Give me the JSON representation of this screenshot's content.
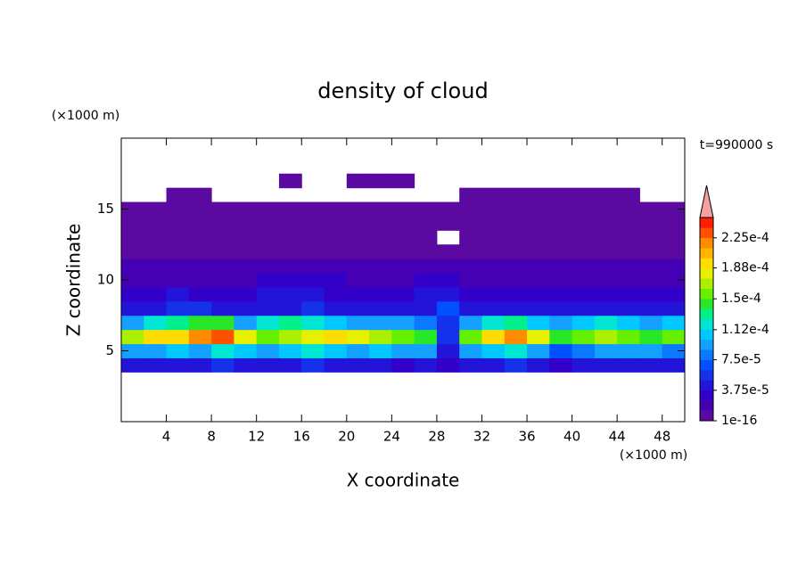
{
  "chart_data": {
    "type": "contour",
    "title": "density of cloud",
    "xlabel": "X coordinate",
    "ylabel": "Z coordinate",
    "xunit": "(×1000 m)",
    "yunit": "(×1000 m)",
    "annotation": "t=990000 s",
    "xlim": [
      0,
      50
    ],
    "ylim": [
      0,
      20
    ],
    "xticks": [
      4,
      8,
      12,
      16,
      20,
      24,
      28,
      32,
      36,
      40,
      44,
      48
    ],
    "yticks": [
      5,
      10,
      15
    ],
    "x": [
      1,
      3,
      5,
      7,
      9,
      11,
      13,
      15,
      17,
      19,
      21,
      23,
      25,
      27,
      29,
      31,
      33,
      35,
      37,
      39,
      41,
      43,
      45,
      47,
      49
    ],
    "z": [
      4,
      5,
      6,
      7,
      8,
      9,
      10,
      11,
      12,
      13,
      14,
      15,
      16,
      17
    ],
    "values": [
      [
        4e-05,
        5e-05,
        4e-05,
        5e-05,
        6e-05,
        5e-05,
        4e-05,
        5e-05,
        6e-05,
        5e-05,
        4e-05,
        5e-05,
        3e-05,
        4e-05,
        3e-05,
        4e-05,
        5e-05,
        6e-05,
        4e-05,
        3e-05,
        4e-05,
        5e-05,
        4e-05,
        5e-05,
        4e-05
      ],
      [
        9e-05,
        0.0001,
        0.00011,
        0.0001,
        0.00012,
        0.00011,
        0.0001,
        0.00011,
        0.00012,
        0.00011,
        0.0001,
        0.00011,
        0.0001,
        9e-05,
        5e-05,
        0.0001,
        0.00011,
        0.00012,
        0.0001,
        7e-05,
        8e-05,
        0.0001,
        9e-05,
        0.0001,
        8e-05
      ],
      [
        0.00017,
        0.00019,
        0.0002,
        0.00022,
        0.00023,
        0.00018,
        0.00016,
        0.00017,
        0.00018,
        0.00019,
        0.00018,
        0.00017,
        0.00016,
        0.00015,
        6e-05,
        0.00016,
        0.00019,
        0.00022,
        0.00018,
        0.00015,
        0.00016,
        0.00017,
        0.00016,
        0.00015,
        0.00016
      ],
      [
        0.0001,
        0.00012,
        0.00013,
        0.00015,
        0.00014,
        0.0001,
        0.00012,
        0.00013,
        0.00012,
        0.00011,
        0.0001,
        0.0001,
        9e-05,
        8e-05,
        6e-05,
        9e-05,
        0.00012,
        0.00013,
        0.00011,
        9e-05,
        0.00011,
        0.00012,
        0.00011,
        0.0001,
        0.00011
      ],
      [
        5e-05,
        5e-05,
        6e-05,
        6e-05,
        5e-05,
        4e-05,
        5e-05,
        5e-05,
        6e-05,
        5e-05,
        4e-05,
        5e-05,
        4e-05,
        5e-05,
        7e-05,
        4e-05,
        5e-05,
        5e-05,
        4e-05,
        4e-05,
        5e-05,
        5e-05,
        4e-05,
        4e-05,
        5e-05
      ],
      [
        3e-05,
        3e-05,
        4e-05,
        3e-05,
        3e-05,
        3e-05,
        4e-05,
        4e-05,
        4e-05,
        3e-05,
        3e-05,
        3e-05,
        3e-05,
        4e-05,
        5e-05,
        3e-05,
        3e-05,
        3e-05,
        3e-05,
        3e-05,
        3e-05,
        3e-05,
        3e-05,
        3e-05,
        3e-05
      ],
      [
        2e-05,
        2e-05,
        2e-05,
        2e-05,
        2e-05,
        2e-05,
        3e-05,
        3e-05,
        3e-05,
        3e-05,
        2e-05,
        2e-05,
        2e-05,
        3e-05,
        3e-05,
        2e-05,
        2e-05,
        2e-05,
        2e-05,
        2e-05,
        2e-05,
        2e-05,
        2e-05,
        2e-05,
        2e-05
      ],
      [
        1.5e-05,
        1.5e-05,
        1.5e-05,
        1.5e-05,
        1.5e-05,
        1.5e-05,
        1.5e-05,
        1.5e-05,
        2e-05,
        2e-05,
        1.5e-05,
        1.5e-05,
        1.5e-05,
        1.5e-05,
        1.5e-05,
        1.5e-05,
        1.5e-05,
        1.5e-05,
        1.5e-05,
        1.5e-05,
        1.5e-05,
        1.5e-05,
        1.5e-05,
        1.5e-05,
        1.5e-05
      ],
      [
        8e-06,
        8e-06,
        8e-06,
        8e-06,
        8e-06,
        8e-06,
        8e-06,
        8e-06,
        8e-06,
        8e-06,
        8e-06,
        8e-06,
        8e-06,
        8e-06,
        8e-06,
        8e-06,
        8e-06,
        8e-06,
        8e-06,
        8e-06,
        8e-06,
        8e-06,
        8e-06,
        8e-06,
        8e-06
      ],
      [
        4e-06,
        4e-06,
        4e-06,
        4e-06,
        4e-06,
        4e-06,
        4e-06,
        4e-06,
        4e-06,
        4e-06,
        4e-06,
        4e-06,
        4e-06,
        4e-06,
        null,
        4e-06,
        4e-06,
        4e-06,
        4e-06,
        4e-06,
        4e-06,
        4e-06,
        4e-06,
        4e-06,
        4e-06
      ],
      [
        2e-06,
        2e-06,
        2e-06,
        2e-06,
        2e-06,
        2e-06,
        2e-06,
        2e-06,
        2e-06,
        2e-06,
        2e-06,
        2e-06,
        2e-06,
        2e-06,
        2e-06,
        2e-06,
        2e-06,
        2e-06,
        2e-06,
        2e-06,
        2e-06,
        2e-06,
        2e-06,
        2e-06,
        2e-06
      ],
      [
        2e-06,
        2e-06,
        2e-06,
        2e-06,
        2e-06,
        2e-06,
        2e-06,
        2e-06,
        2e-06,
        2e-06,
        2e-06,
        2e-06,
        2e-06,
        2e-06,
        2e-06,
        2e-06,
        2e-06,
        2e-06,
        2e-06,
        2e-06,
        2e-06,
        2e-06,
        2e-06,
        2e-06,
        2e-06
      ],
      [
        null,
        null,
        3e-06,
        3e-06,
        null,
        null,
        null,
        null,
        null,
        null,
        null,
        null,
        null,
        null,
        null,
        3e-06,
        3e-06,
        3e-06,
        3e-06,
        3e-06,
        3e-06,
        3e-06,
        3e-06,
        null,
        null
      ],
      [
        null,
        null,
        null,
        null,
        null,
        null,
        null,
        3e-06,
        null,
        null,
        3e-06,
        3e-06,
        3e-06,
        null,
        null,
        null,
        null,
        null,
        null,
        null,
        null,
        null,
        null,
        null,
        null
      ]
    ],
    "clim": [
      1e-16,
      0.00025
    ],
    "colors": [
      "#5a0aa0",
      "#4600b4",
      "#3200c8",
      "#2214d8",
      "#1432ea",
      "#0050ff",
      "#0a78ff",
      "#14a0ff",
      "#00c8ff",
      "#00e6d2",
      "#00f08c",
      "#28e628",
      "#64f000",
      "#aaf000",
      "#e6f000",
      "#ffdc00",
      "#ffb400",
      "#ff8c00",
      "#ff5000",
      "#ff1e00"
    ],
    "over_color": "#f4a0a0",
    "cticks": [
      {
        "value": 1e-16,
        "label": "1e-16"
      },
      {
        "value": 3.75e-05,
        "label": "3.75e-5"
      },
      {
        "value": 7.5e-05,
        "label": "7.5e-5"
      },
      {
        "value": 0.000112,
        "label": "1.12e-4"
      },
      {
        "value": 0.00015,
        "label": "1.5e-4"
      },
      {
        "value": 0.000188,
        "label": "1.88e-4"
      },
      {
        "value": 0.000225,
        "label": "2.25e-4"
      }
    ]
  }
}
